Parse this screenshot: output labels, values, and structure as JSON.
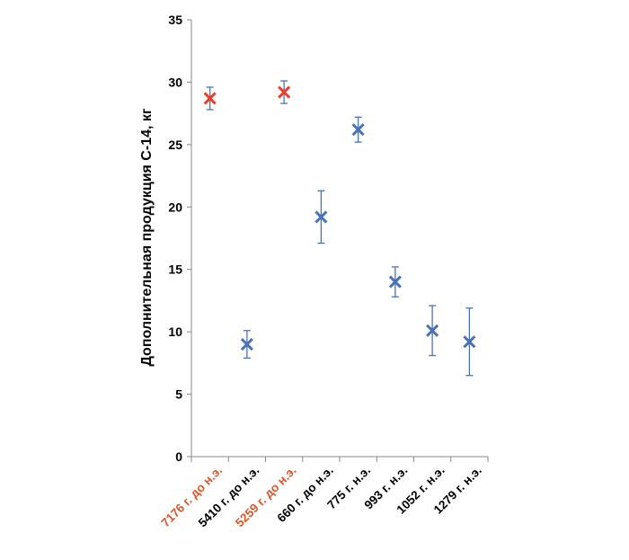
{
  "chart_data": {
    "type": "scatter",
    "title": "",
    "xlabel": "",
    "ylabel": "Дополнительная продукция С-14, кг",
    "ylim": [
      0,
      35
    ],
    "yticks": [
      0,
      5,
      10,
      15,
      20,
      25,
      30,
      35
    ],
    "grid": false,
    "marker": "x",
    "colors": {
      "highlight": "#e8402a",
      "normal": "#4a72b8",
      "errorbar": "#4a72b8",
      "label_highlight": "#d9572b",
      "label_normal": "#000000",
      "axis": "#888888"
    },
    "points": [
      {
        "category": "7176 г. до н.э.",
        "value": 28.7,
        "error_low": 27.8,
        "error_high": 29.6,
        "highlight": true
      },
      {
        "category": "5410 г. до н.э.",
        "value": 9.0,
        "error_low": 7.9,
        "error_high": 10.1,
        "highlight": false
      },
      {
        "category": "5259 г. до н.э.",
        "value": 29.2,
        "error_low": 28.3,
        "error_high": 30.1,
        "highlight": true
      },
      {
        "category": "660 г. до н.э.",
        "value": 19.2,
        "error_low": 17.1,
        "error_high": 21.3,
        "highlight": false
      },
      {
        "category": "775 г. н.э.",
        "value": 26.2,
        "error_low": 25.2,
        "error_high": 27.2,
        "highlight": false
      },
      {
        "category": "993 г. н.э.",
        "value": 14.0,
        "error_low": 12.8,
        "error_high": 15.2,
        "highlight": false
      },
      {
        "category": "1052 г. н.э.",
        "value": 10.1,
        "error_low": 8.1,
        "error_high": 12.1,
        "highlight": false
      },
      {
        "category": "1279 г. н.э.",
        "value": 9.2,
        "error_low": 6.5,
        "error_high": 11.9,
        "highlight": false
      }
    ]
  }
}
